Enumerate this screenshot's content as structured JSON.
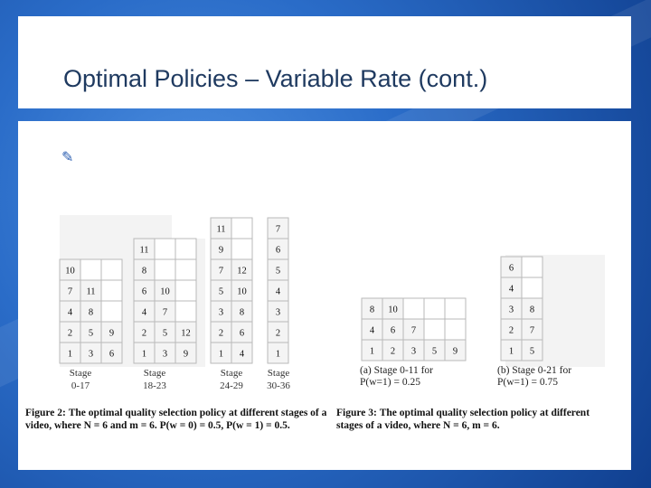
{
  "slide": {
    "title": "Optimal Policies – Variable Rate (cont.)",
    "bullet_glyph": "✎"
  },
  "figure2": {
    "stages": [
      {
        "label_line1": "Stage",
        "label_line2": "0-17",
        "rows": [
          [
            "10",
            "",
            ""
          ],
          [
            "7",
            "11",
            ""
          ],
          [
            "4",
            "8",
            ""
          ],
          [
            "2",
            "5",
            "9"
          ],
          [
            "1",
            "3",
            "6"
          ]
        ]
      },
      {
        "label_line1": "Stage",
        "label_line2": "18-23",
        "rows": [
          [
            "11",
            "",
            ""
          ],
          [
            "8",
            "",
            ""
          ],
          [
            "6",
            "10",
            ""
          ],
          [
            "4",
            "7",
            ""
          ],
          [
            "2",
            "5",
            "12"
          ],
          [
            "1",
            "3",
            "9"
          ]
        ]
      },
      {
        "label_line1": "Stage",
        "label_line2": "24-29",
        "rows": [
          [
            "11",
            ""
          ],
          [
            "9",
            ""
          ],
          [
            "7",
            "12"
          ],
          [
            "5",
            "10"
          ],
          [
            "3",
            "8"
          ],
          [
            "2",
            "6"
          ],
          [
            "1",
            "4"
          ]
        ]
      },
      {
        "label_line1": "Stage",
        "label_line2": "30-36",
        "rows": [
          [
            "7"
          ],
          [
            "6"
          ],
          [
            "5"
          ],
          [
            "4"
          ],
          [
            "3"
          ],
          [
            "2"
          ],
          [
            "1"
          ]
        ]
      }
    ],
    "caption_label": "Figure 2:",
    "caption_text": "The optimal quality selection policy at different stages of a video, where N = 6 and m = 6. P(w = 0) = 0.5, P(w = 1) = 0.5."
  },
  "figure3": {
    "sub_a": {
      "label": "(a)  Stage    0-11    for",
      "label2": "P(w=1) = 0.25",
      "rows": [
        [
          "8",
          "10",
          "",
          "",
          ""
        ],
        [
          "4",
          "6",
          "7",
          "",
          ""
        ],
        [
          "1",
          "2",
          "3",
          "5",
          "9"
        ]
      ]
    },
    "sub_b": {
      "label": "(b)  Stage    0-21    for",
      "label2": "P(w=1) = 0.75",
      "rows": [
        [
          "6",
          ""
        ],
        [
          "4",
          ""
        ],
        [
          "3",
          "8"
        ],
        [
          "2",
          "7"
        ],
        [
          "1",
          "5"
        ]
      ]
    },
    "caption_label": "Figure 3:",
    "caption_text": "The optimal quality selection policy at different stages of a video, where N = 6, m = 6."
  }
}
